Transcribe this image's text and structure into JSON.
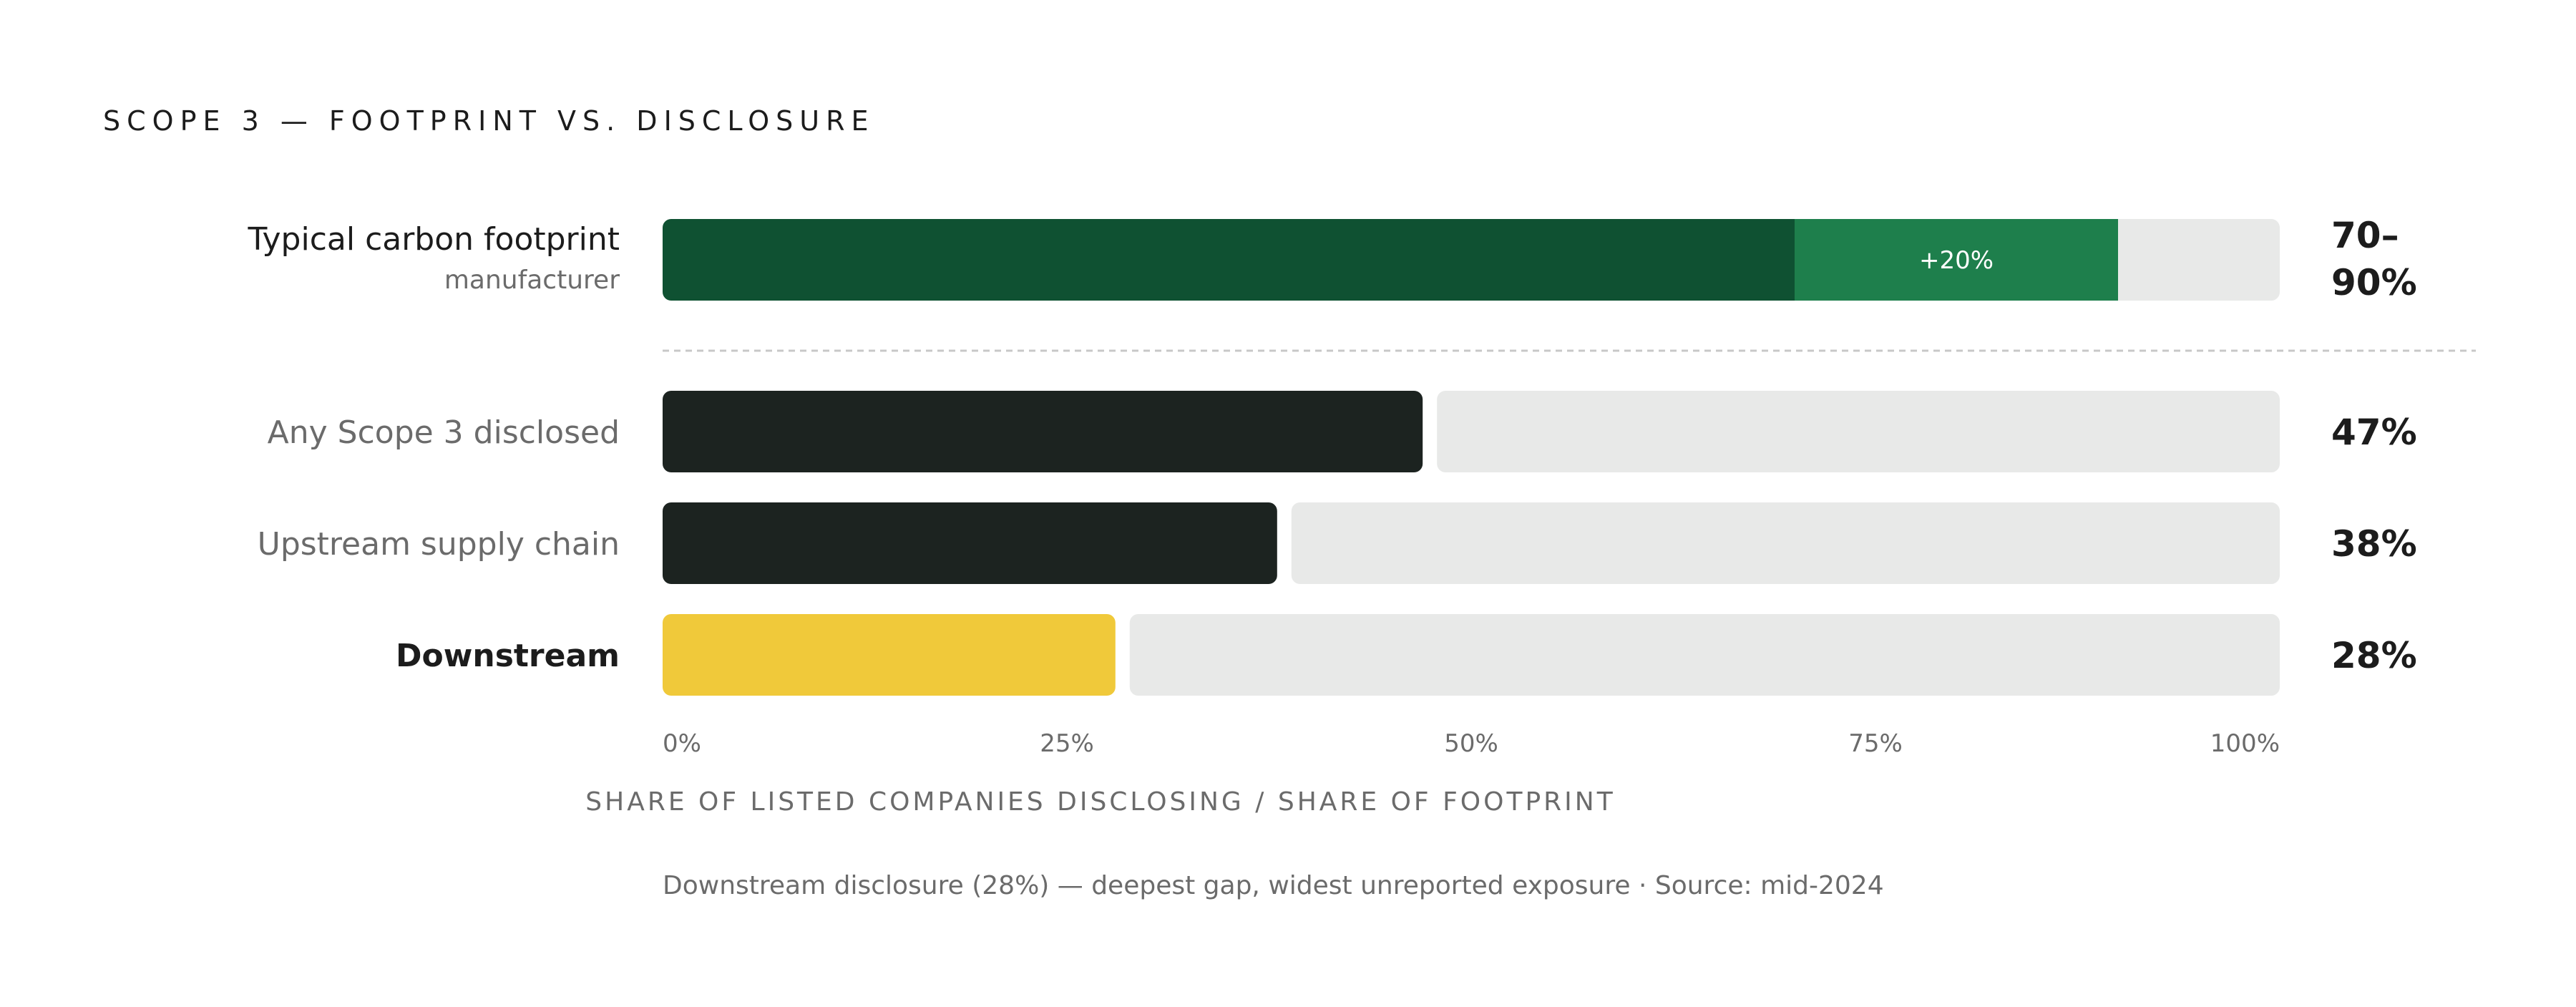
{
  "colors": {
    "footprint_base": "#0f5132",
    "footprint_range": "#1e7f4c",
    "disclosed": "#1c2320",
    "highlight": "#f0c93a",
    "track": "#e8e9e8",
    "value_green": "#0f5132",
    "text_dark": "#1c1c1c",
    "text_muted": "#6b6b6b",
    "divider": "#c8c8c8"
  },
  "chart_data": {
    "type": "bar",
    "orientation": "horizontal",
    "title": "SCOPE 3 — FOOTPRINT VS. DISCLOSURE",
    "xlabel": "SHARE OF LISTED COMPANIES DISCLOSING / SHARE OF FOOTPRINT",
    "xlim": [
      0,
      100
    ],
    "xticks": [
      "0%",
      "25%",
      "50%",
      "75%",
      "100%"
    ],
    "grid": false,
    "footprint": {
      "label": "Typical carbon footprint",
      "sublabel": "manufacturer",
      "range_low": 70,
      "range_high": 90,
      "range_label": "+20%",
      "value_label_line1": "70–",
      "value_label_line2": "90%"
    },
    "disclosure": [
      {
        "category": "Any Scope 3 disclosed",
        "value": 47,
        "value_label": "47%"
      },
      {
        "category": "Upstream supply chain",
        "value": 38,
        "value_label": "38%"
      },
      {
        "category": "Downstream",
        "value": 28,
        "value_label": "28%",
        "highlight": true
      }
    ],
    "note": "Downstream disclosure (28%) — deepest gap, widest unreported exposure · Source: mid-2024"
  }
}
